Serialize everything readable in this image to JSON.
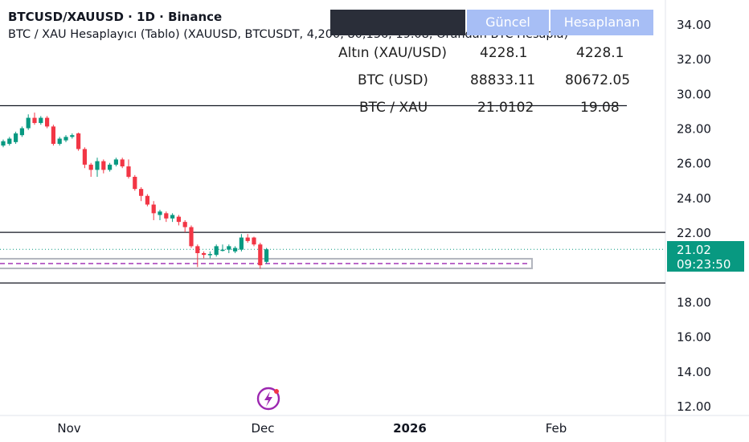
{
  "header": {
    "title": "BTCUSD/XAUUSD · 1D · Binance",
    "indicator": "BTC / XAU Hesaplayıcı (Tablo) (XAUUSD, BTCUSDT, 4,200, 80,136, 19.08, Orandan BTC Hesapla)"
  },
  "table": {
    "headers": [
      "",
      "Güncel",
      "Hesaplanan"
    ],
    "rows": [
      {
        "label": "Altın (XAU/USD)",
        "current": "4228.1",
        "calc": "4228.1"
      },
      {
        "label": "BTC (USD)",
        "current": "88833.11",
        "calc": "80672.05"
      },
      {
        "label": "BTC / XAU",
        "current": "21.0102",
        "calc": "19.08"
      }
    ]
  },
  "price_label": {
    "value": "21.02",
    "countdown": "09:23:50"
  },
  "colors": {
    "up": "#089981",
    "down": "#f23645",
    "ema_purple": "#9c27b0",
    "header_dark": "#2a2e39",
    "header_blue": "#a7bef5",
    "price_bg": "#089981"
  },
  "chart_data": {
    "type": "candlestick",
    "y_ticks": [
      "34.00",
      "32.00",
      "30.00",
      "28.00",
      "26.00",
      "24.00",
      "22.00",
      "18.00",
      "16.00",
      "14.00",
      "12.00"
    ],
    "x_ticks": [
      {
        "label": "Nov",
        "bold": false
      },
      {
        "label": "Dec",
        "bold": false
      },
      {
        "label": "2026",
        "bold": true
      },
      {
        "label": "Feb",
        "bold": false
      }
    ],
    "ylim": [
      11.7,
      35.2
    ],
    "current_price": 21.02,
    "hlines": [
      29.3,
      22.0,
      19.08
    ],
    "dashed_level": 20.2,
    "candles": [
      {
        "o": 27.0,
        "c": 27.25,
        "h": 27.35,
        "l": 26.9
      },
      {
        "o": 27.1,
        "c": 27.4,
        "h": 27.5,
        "l": 27.0
      },
      {
        "o": 27.2,
        "c": 27.7,
        "h": 27.8,
        "l": 27.1
      },
      {
        "o": 27.6,
        "c": 28.0,
        "h": 28.1,
        "l": 27.5
      },
      {
        "o": 28.0,
        "c": 28.6,
        "h": 28.8,
        "l": 27.9
      },
      {
        "o": 28.6,
        "c": 28.3,
        "h": 28.9,
        "l": 28.2
      },
      {
        "o": 28.3,
        "c": 28.6,
        "h": 28.7,
        "l": 28.2
      },
      {
        "o": 28.6,
        "c": 28.1,
        "h": 28.7,
        "l": 28.0
      },
      {
        "o": 28.1,
        "c": 27.1,
        "h": 28.2,
        "l": 27.0
      },
      {
        "o": 27.1,
        "c": 27.4,
        "h": 27.5,
        "l": 27.0
      },
      {
        "o": 27.3,
        "c": 27.5,
        "h": 27.6,
        "l": 27.2
      },
      {
        "o": 27.5,
        "c": 27.6,
        "h": 27.7,
        "l": 27.4
      },
      {
        "o": 27.7,
        "c": 26.8,
        "h": 27.75,
        "l": 26.7
      },
      {
        "o": 26.8,
        "c": 25.9,
        "h": 26.9,
        "l": 25.7
      },
      {
        "o": 25.9,
        "c": 25.6,
        "h": 26.0,
        "l": 25.2
      },
      {
        "o": 25.6,
        "c": 26.1,
        "h": 26.3,
        "l": 25.2
      },
      {
        "o": 26.1,
        "c": 25.6,
        "h": 26.2,
        "l": 25.4
      },
      {
        "o": 25.6,
        "c": 25.9,
        "h": 26.0,
        "l": 25.5
      },
      {
        "o": 25.9,
        "c": 26.2,
        "h": 26.3,
        "l": 25.8
      },
      {
        "o": 26.2,
        "c": 25.8,
        "h": 26.3,
        "l": 25.7
      },
      {
        "o": 25.8,
        "c": 25.2,
        "h": 26.2,
        "l": 25.1
      },
      {
        "o": 25.2,
        "c": 24.5,
        "h": 25.3,
        "l": 24.4
      },
      {
        "o": 24.5,
        "c": 24.1,
        "h": 24.6,
        "l": 23.8
      },
      {
        "o": 24.1,
        "c": 23.6,
        "h": 24.2,
        "l": 23.5
      },
      {
        "o": 23.6,
        "c": 23.1,
        "h": 23.8,
        "l": 22.7
      },
      {
        "o": 23.0,
        "c": 23.2,
        "h": 23.3,
        "l": 22.7
      },
      {
        "o": 23.1,
        "c": 22.8,
        "h": 23.2,
        "l": 22.6
      },
      {
        "o": 22.8,
        "c": 23.0,
        "h": 23.1,
        "l": 22.6
      },
      {
        "o": 22.9,
        "c": 22.6,
        "h": 23.0,
        "l": 22.4
      },
      {
        "o": 22.6,
        "c": 22.3,
        "h": 22.7,
        "l": 22.0
      },
      {
        "o": 22.3,
        "c": 21.2,
        "h": 22.4,
        "l": 21.1
      },
      {
        "o": 21.2,
        "c": 20.8,
        "h": 21.3,
        "l": 20.0
      },
      {
        "o": 20.8,
        "c": 20.7,
        "h": 20.9,
        "l": 20.5
      },
      {
        "o": 20.7,
        "c": 20.75,
        "h": 20.9,
        "l": 20.5
      },
      {
        "o": 20.7,
        "c": 21.2,
        "h": 21.3,
        "l": 20.6
      },
      {
        "o": 20.95,
        "c": 21.0,
        "h": 21.3,
        "l": 20.9
      },
      {
        "o": 21.0,
        "c": 21.2,
        "h": 21.3,
        "l": 20.8
      },
      {
        "o": 20.9,
        "c": 21.1,
        "h": 21.2,
        "l": 20.8
      },
      {
        "o": 21.0,
        "c": 21.7,
        "h": 21.9,
        "l": 20.9
      },
      {
        "o": 21.7,
        "c": 21.5,
        "h": 21.9,
        "l": 21.4
      },
      {
        "o": 21.7,
        "c": 21.3,
        "h": 21.75,
        "l": 21.2
      },
      {
        "o": 21.3,
        "c": 20.1,
        "h": 21.4,
        "l": 19.9
      },
      {
        "o": 20.3,
        "c": 21.02,
        "h": 21.1,
        "l": 20.2
      }
    ]
  }
}
